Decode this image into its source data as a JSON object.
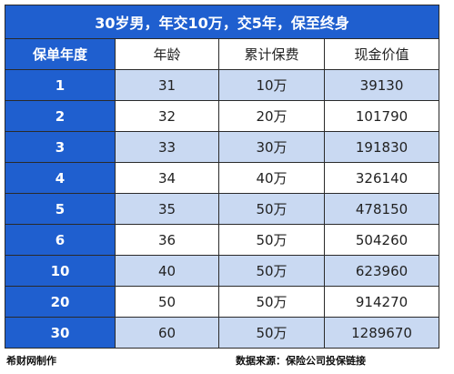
{
  "title": "30岁男，年交10万，交5年，保至终身",
  "columns": [
    "保单年度",
    "年龄",
    "累计保费",
    "现金价值"
  ],
  "rows": [
    {
      "year": "1",
      "age": "31",
      "premium": "10万",
      "cash_value": "39130"
    },
    {
      "year": "2",
      "age": "32",
      "premium": "20万",
      "cash_value": "101790"
    },
    {
      "year": "3",
      "age": "33",
      "premium": "30万",
      "cash_value": "191830"
    },
    {
      "year": "4",
      "age": "34",
      "premium": "40万",
      "cash_value": "326140"
    },
    {
      "year": "5",
      "age": "35",
      "premium": "50万",
      "cash_value": "478150"
    },
    {
      "year": "6",
      "age": "36",
      "premium": "50万",
      "cash_value": "504260"
    },
    {
      "year": "10",
      "age": "40",
      "premium": "50万",
      "cash_value": "623960"
    },
    {
      "year": "20",
      "age": "50",
      "premium": "50万",
      "cash_value": "914270"
    },
    {
      "year": "30",
      "age": "60",
      "premium": "50万",
      "cash_value": "1289670"
    }
  ],
  "footer": {
    "left": "希财网制作",
    "right": "数据来源：保险公司投保链接"
  },
  "colors": {
    "header_blue": "#1f5fcf",
    "row_shade": "#c9d9f2"
  }
}
